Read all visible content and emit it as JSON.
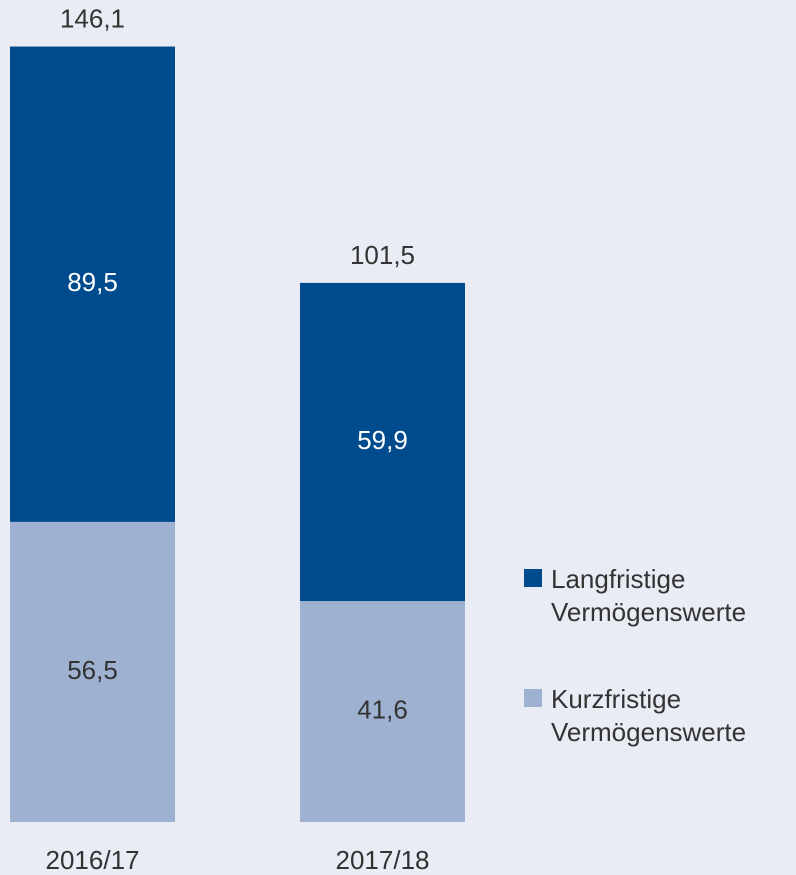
{
  "chart_data": {
    "type": "stacked_bar",
    "categories": [
      "2016/17",
      "2017/18"
    ],
    "series": [
      {
        "name": "Kurzfristige Vermögenswerte",
        "color": "#9eb1d0",
        "label_color": "#333333",
        "values": [
          56.5,
          41.6
        ],
        "value_labels": [
          "56,5",
          "41,6"
        ]
      },
      {
        "name": "Langfristige Vermögenswerte",
        "color": "#004b8d",
        "label_color": "#ffffff",
        "values": [
          89.5,
          59.9
        ],
        "value_labels": [
          "89,5",
          "59,9"
        ]
      }
    ],
    "totals": [
      146.1,
      101.5
    ],
    "total_labels": [
      "146,1",
      "101,5"
    ],
    "legend": "right"
  }
}
